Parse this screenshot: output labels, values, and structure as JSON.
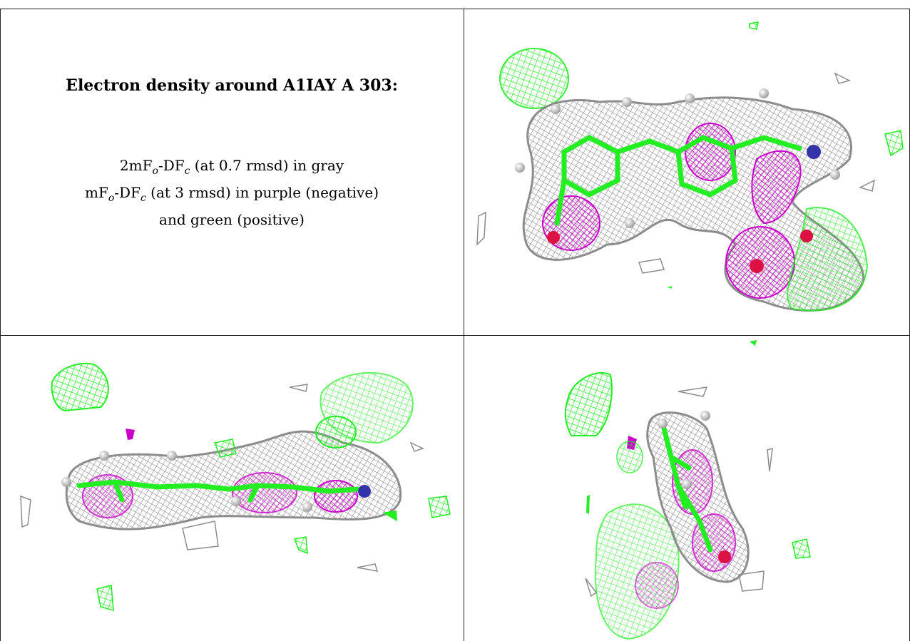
{
  "caption": {
    "title": "Electron density around A1IAY A 303:",
    "lines": [
      {
        "pre": "2mF",
        "sub1": "o",
        "mid": "-DF",
        "sub2": "c",
        "post": " (at 0.7 rmsd) in gray"
      },
      {
        "pre": "mF",
        "sub1": "o",
        "mid": "-DF",
        "sub2": "c",
        "post": " (at 3 rmsd) in purple (negative)"
      },
      {
        "text": "and green (positive)"
      }
    ]
  },
  "colors": {
    "gray_mesh": "#8c8c8c",
    "negative": "#cc00cc",
    "positive": "#22ee22",
    "nitrogen": "#3333aa",
    "oxygen": "#dd1144",
    "hydrogen": "#dddddd"
  }
}
